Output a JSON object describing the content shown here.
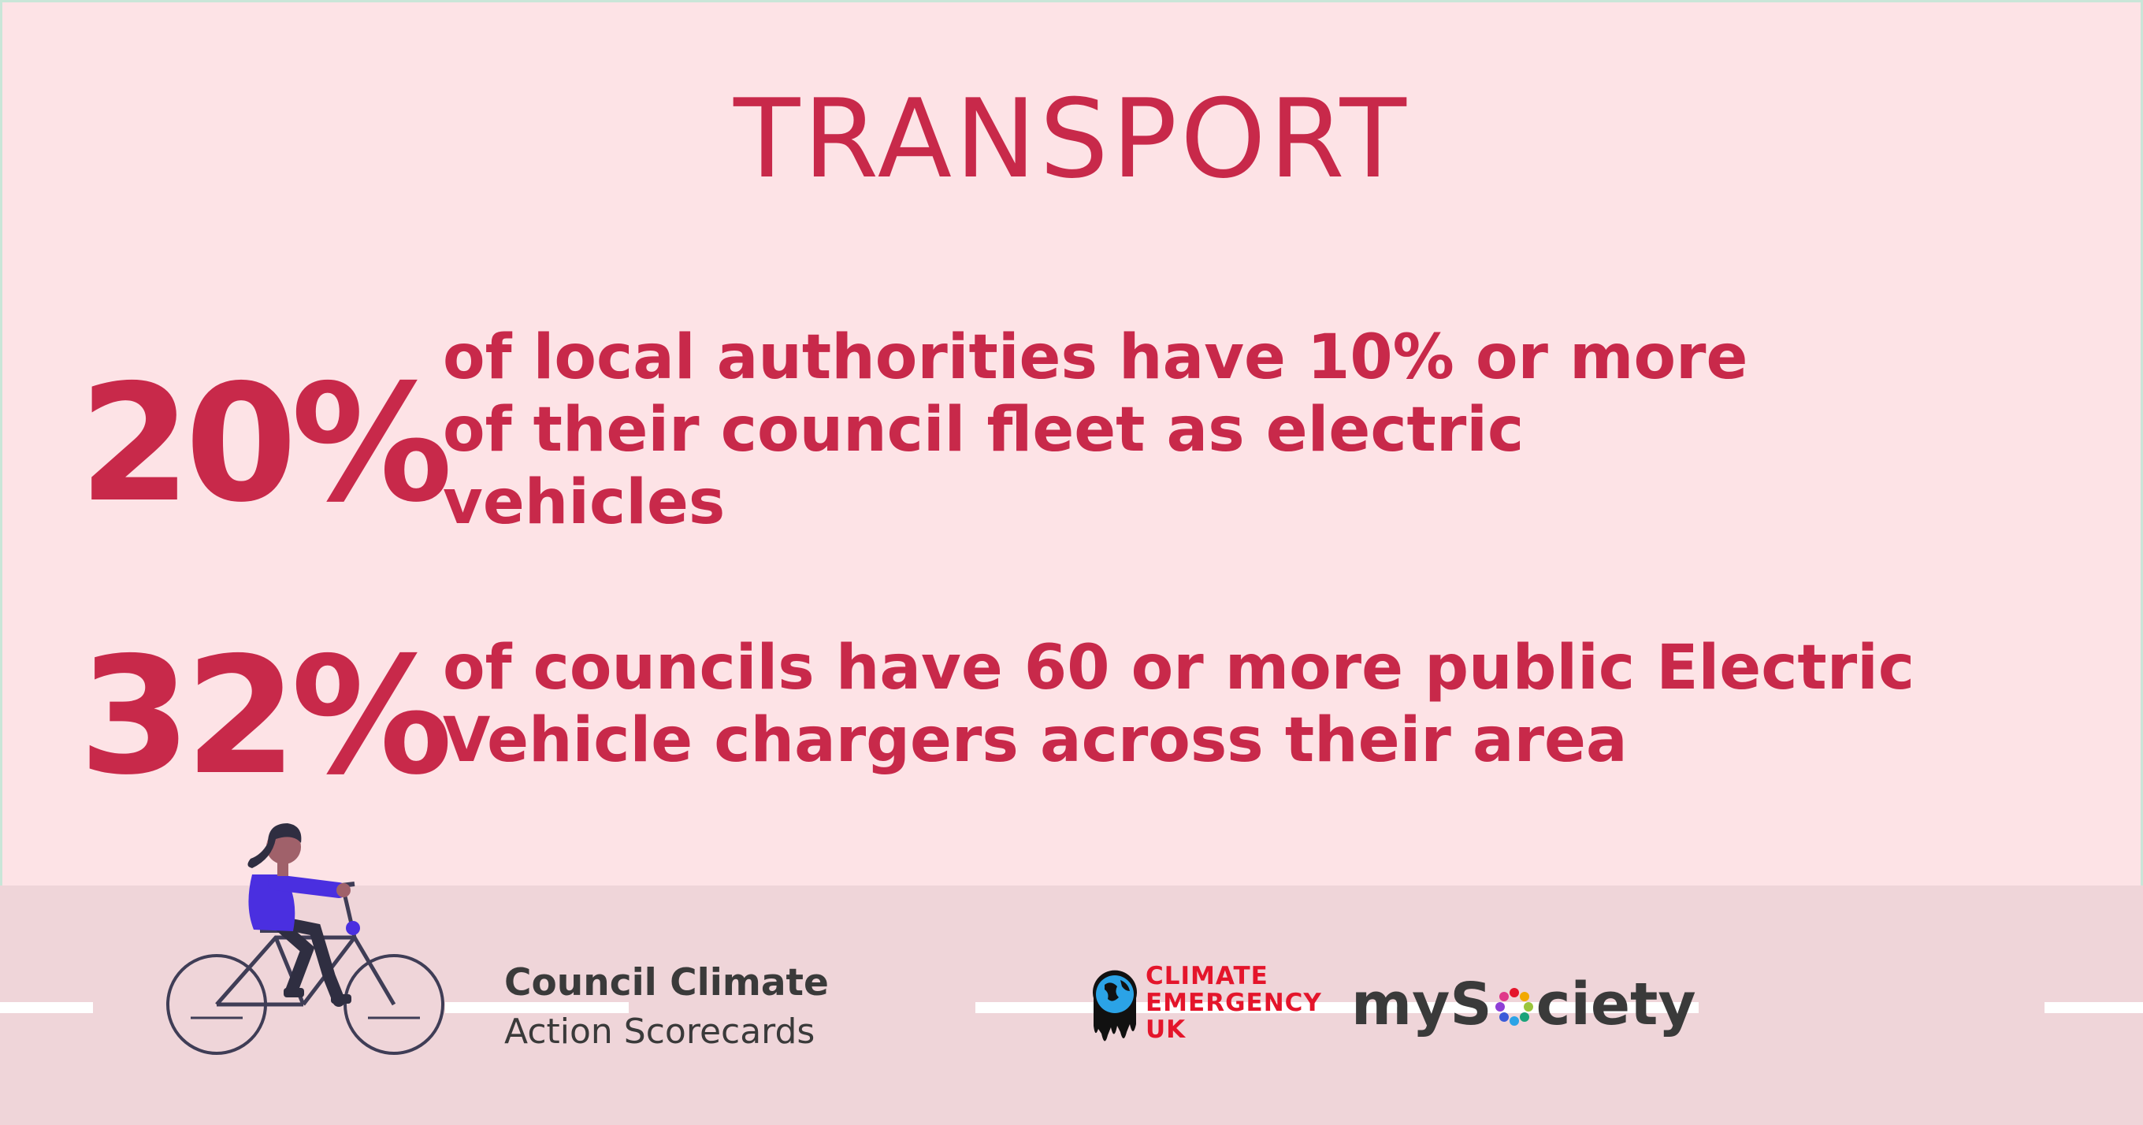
{
  "title": "TRANSPORT",
  "stats": [
    {
      "value": "20%",
      "lines": [
        "of local authorities have 10% or more",
        "of their council fleet as electric",
        "vehicles"
      ]
    },
    {
      "value": "32%",
      "lines": [
        "of councils have 60 or more public Electric",
        "Vehicle chargers across their area"
      ]
    }
  ],
  "brand": {
    "line1": "Council Climate",
    "line2": "Action Scorecards"
  },
  "partners": {
    "ceuk_lines": [
      "CLIMATE",
      "EMERGENCY",
      "UK"
    ],
    "mysociety_before": "myS",
    "mysociety_after": "ciety"
  },
  "colors": {
    "background": "#fde3e6",
    "accent": "#c8294a",
    "band": "#efd5d9",
    "ceuk_red": "#e4152b"
  },
  "icons": [
    "cyclist-illustration",
    "globe-icon",
    "dotted-ring-icon"
  ]
}
